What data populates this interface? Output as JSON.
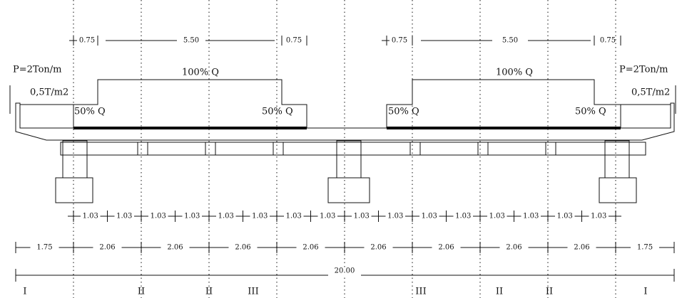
{
  "top_dimensions": {
    "left": [
      "0.75",
      "5.50",
      "0.75"
    ],
    "right": [
      "0.75",
      "5.50",
      "0.75"
    ]
  },
  "loads": {
    "line_load_left": "P=2Ton/m",
    "line_load_right": "P=2Ton/m",
    "sidewalk_left": "0,5T/m2",
    "sidewalk_right": "0,5T/m2",
    "full_left": "100% Q",
    "full_right": "100% Q",
    "half": [
      "50% Q",
      "50% Q",
      "50% Q",
      "50% Q"
    ]
  },
  "girder_spacing_half": [
    "1.03",
    "1.03",
    "1.03",
    "1.03",
    "1.03",
    "1.03",
    "1.03",
    "1.03",
    "1.03",
    "1.03",
    "1.03",
    "1.03",
    "1.03",
    "1.03",
    "1.03",
    "1.03"
  ],
  "girder_spacing": [
    "1.75",
    "2.06",
    "2.06",
    "2.06",
    "2.06",
    "2.06",
    "2.06",
    "2.06",
    "2.06",
    "1.75"
  ],
  "total_width": "20.00",
  "zones": [
    "I",
    "II",
    "II",
    "III",
    "III",
    "II",
    "II",
    "I"
  ]
}
